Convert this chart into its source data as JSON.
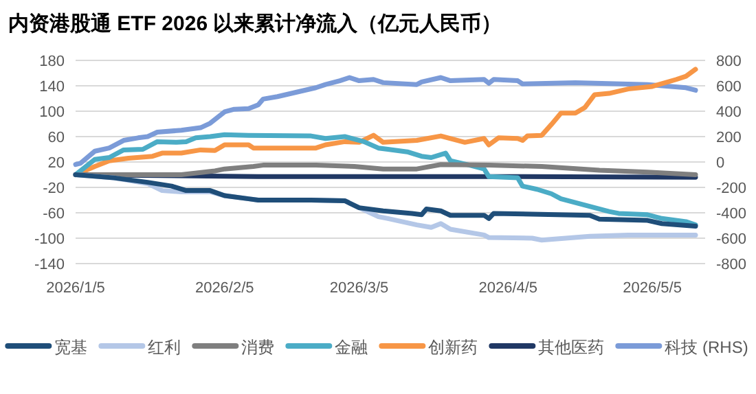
{
  "chart_data": {
    "type": "line",
    "title": "内资港股通 ETF 2026 以来累计净流入（亿元人民币）",
    "xlim": [
      "2026-01-05",
      "2026-05-16"
    ],
    "xticks": [
      {
        "value": "2026-01-05",
        "label": "2026/1/5"
      },
      {
        "value": "2026-02-05",
        "label": "2026/2/5"
      },
      {
        "value": "2026-03-05",
        "label": "2026/3/5"
      },
      {
        "value": "2026-04-05",
        "label": "2026/4/5"
      },
      {
        "value": "2026-05-05",
        "label": "2026/5/5"
      }
    ],
    "ylim": [
      -140,
      180
    ],
    "yticks": [
      -140,
      -100,
      -60,
      -20,
      20,
      60,
      100,
      140,
      180
    ],
    "y2lim": [
      -800,
      800
    ],
    "y2ticks": [
      -800,
      -600,
      -400,
      -200,
      0,
      200,
      400,
      600,
      800
    ],
    "grid": "y",
    "legend": "bottom",
    "series": [
      {
        "name": "宽基",
        "color": "#1f4e79",
        "x": [
          "2026-01-05",
          "2026-01-13",
          "2026-01-20",
          "2026-01-25",
          "2026-01-28",
          "2026-02-02",
          "2026-02-05",
          "2026-02-10",
          "2026-02-12",
          "2026-02-23",
          "2026-03-02",
          "2026-03-05",
          "2026-03-10",
          "2026-03-16",
          "2026-03-18",
          "2026-03-19",
          "2026-03-22",
          "2026-03-24",
          "2026-03-31",
          "2026-04-01",
          "2026-04-02",
          "2026-04-22",
          "2026-04-24",
          "2026-05-04",
          "2026-05-07",
          "2026-05-14"
        ],
        "values": [
          0,
          -5,
          -12,
          -18,
          -25,
          -25,
          -33,
          -38,
          -40,
          -40,
          -41,
          -52,
          -57,
          -61,
          -63,
          -54,
          -57,
          -64,
          -64,
          -69,
          -61,
          -64,
          -70,
          -72,
          -77,
          -81
        ]
      },
      {
        "name": "红利",
        "color": "#b4c7e7",
        "x": [
          "2026-01-05",
          "2026-01-13",
          "2026-01-20",
          "2026-01-23",
          "2026-01-27",
          "2026-02-02",
          "2026-02-05",
          "2026-02-10",
          "2026-02-12",
          "2026-02-23",
          "2026-03-02",
          "2026-03-05",
          "2026-03-09",
          "2026-03-11",
          "2026-03-17",
          "2026-03-20",
          "2026-03-22",
          "2026-03-24",
          "2026-03-31",
          "2026-04-01",
          "2026-04-10",
          "2026-04-12",
          "2026-04-22",
          "2026-04-30",
          "2026-05-14"
        ],
        "values": [
          0,
          -5,
          -14,
          -25,
          -27,
          -27,
          -33,
          -38,
          -40,
          -40,
          -41,
          -52,
          -66,
          -69,
          -79,
          -83,
          -77,
          -86,
          -95,
          -99,
          -100,
          -103,
          -97,
          -95,
          -95
        ]
      },
      {
        "name": "消费",
        "color": "#7f7f7f",
        "x": [
          "2026-01-05",
          "2026-01-18",
          "2026-01-27",
          "2026-02-03",
          "2026-02-05",
          "2026-02-11",
          "2026-02-13",
          "2026-02-24",
          "2026-03-04",
          "2026-03-10",
          "2026-03-17",
          "2026-03-22",
          "2026-04-01",
          "2026-04-12",
          "2026-04-24",
          "2026-05-04",
          "2026-05-14"
        ],
        "values": [
          0,
          0,
          0,
          6,
          9,
          13,
          15,
          15,
          13,
          9,
          9,
          16,
          15,
          13,
          7,
          4,
          0
        ]
      },
      {
        "name": "金融",
        "color": "#4bacc6",
        "x": [
          "2026-01-05",
          "2026-01-09",
          "2026-01-12",
          "2026-01-15",
          "2026-01-19",
          "2026-01-22",
          "2026-01-26",
          "2026-01-28",
          "2026-01-30",
          "2026-02-02",
          "2026-02-05",
          "2026-02-10",
          "2026-02-23",
          "2026-02-26",
          "2026-03-02",
          "2026-03-06",
          "2026-03-09",
          "2026-03-11",
          "2026-03-15",
          "2026-03-18",
          "2026-03-20",
          "2026-03-23",
          "2026-03-24",
          "2026-03-28",
          "2026-03-31",
          "2026-04-01",
          "2026-04-07",
          "2026-04-08",
          "2026-04-11",
          "2026-04-14",
          "2026-04-16",
          "2026-04-21",
          "2026-04-26",
          "2026-04-28",
          "2026-05-04",
          "2026-05-07",
          "2026-05-12",
          "2026-05-14"
        ],
        "values": [
          0,
          24,
          27,
          39,
          40,
          52,
          51,
          52,
          58,
          60,
          63,
          62,
          61,
          57,
          60,
          52,
          42,
          40,
          36,
          29,
          27,
          34,
          22,
          15,
          9,
          -3,
          -5,
          -18,
          -23,
          -30,
          -38,
          -48,
          -58,
          -61,
          -63,
          -69,
          -74,
          -79
        ]
      },
      {
        "name": "创新药",
        "color": "#f79646",
        "x": [
          "2026-01-05",
          "2026-01-09",
          "2026-01-12",
          "2026-01-16",
          "2026-01-21",
          "2026-01-23",
          "2026-01-27",
          "2026-01-31",
          "2026-02-03",
          "2026-02-05",
          "2026-02-10",
          "2026-02-11",
          "2026-02-24",
          "2026-02-26",
          "2026-03-02",
          "2026-03-05",
          "2026-03-08",
          "2026-03-10",
          "2026-03-17",
          "2026-03-22",
          "2026-03-27",
          "2026-03-31",
          "2026-04-01",
          "2026-04-03",
          "2026-04-07",
          "2026-04-08",
          "2026-04-09",
          "2026-04-12",
          "2026-04-14",
          "2026-04-16",
          "2026-04-19",
          "2026-04-21",
          "2026-04-23",
          "2026-04-26",
          "2026-04-30",
          "2026-05-05",
          "2026-05-10",
          "2026-05-12",
          "2026-05-14"
        ],
        "values": [
          0,
          13,
          22,
          26,
          29,
          34,
          34,
          39,
          38,
          47,
          47,
          42,
          42,
          47,
          52,
          51,
          62,
          51,
          54,
          61,
          51,
          57,
          47,
          58,
          57,
          54,
          61,
          62,
          79,
          97,
          97,
          106,
          126,
          128,
          135,
          139,
          150,
          155,
          166
        ]
      },
      {
        "name": "其他医药",
        "color": "#203864",
        "x": [
          "2026-01-05",
          "2026-02-12",
          "2026-03-05",
          "2026-04-05",
          "2026-05-14"
        ],
        "values": [
          0,
          -3,
          -3,
          -3,
          -4
        ]
      },
      {
        "name": "科技 (RHS)",
        "color": "#7b9bd8",
        "axis": "y2",
        "x": [
          "2026-01-05",
          "2026-01-06",
          "2026-01-09",
          "2026-01-12",
          "2026-01-15",
          "2026-01-18",
          "2026-01-20",
          "2026-01-22",
          "2026-01-27",
          "2026-01-31",
          "2026-02-02",
          "2026-02-05",
          "2026-02-07",
          "2026-02-10",
          "2026-02-12",
          "2026-02-13",
          "2026-02-16",
          "2026-02-20",
          "2026-02-24",
          "2026-02-26",
          "2026-03-01",
          "2026-03-03",
          "2026-03-05",
          "2026-03-08",
          "2026-03-10",
          "2026-03-17",
          "2026-03-18",
          "2026-03-22",
          "2026-03-24",
          "2026-03-31",
          "2026-04-01",
          "2026-04-02",
          "2026-04-07",
          "2026-04-08",
          "2026-04-19",
          "2026-05-04",
          "2026-05-12",
          "2026-05-14"
        ],
        "values": [
          -20,
          -10,
          85,
          110,
          170,
          190,
          200,
          235,
          250,
          270,
          305,
          395,
          415,
          420,
          450,
          495,
          515,
          550,
          585,
          610,
          640,
          665,
          640,
          650,
          625,
          610,
          630,
          665,
          640,
          650,
          620,
          650,
          640,
          615,
          625,
          610,
          585,
          565
        ]
      }
    ]
  }
}
